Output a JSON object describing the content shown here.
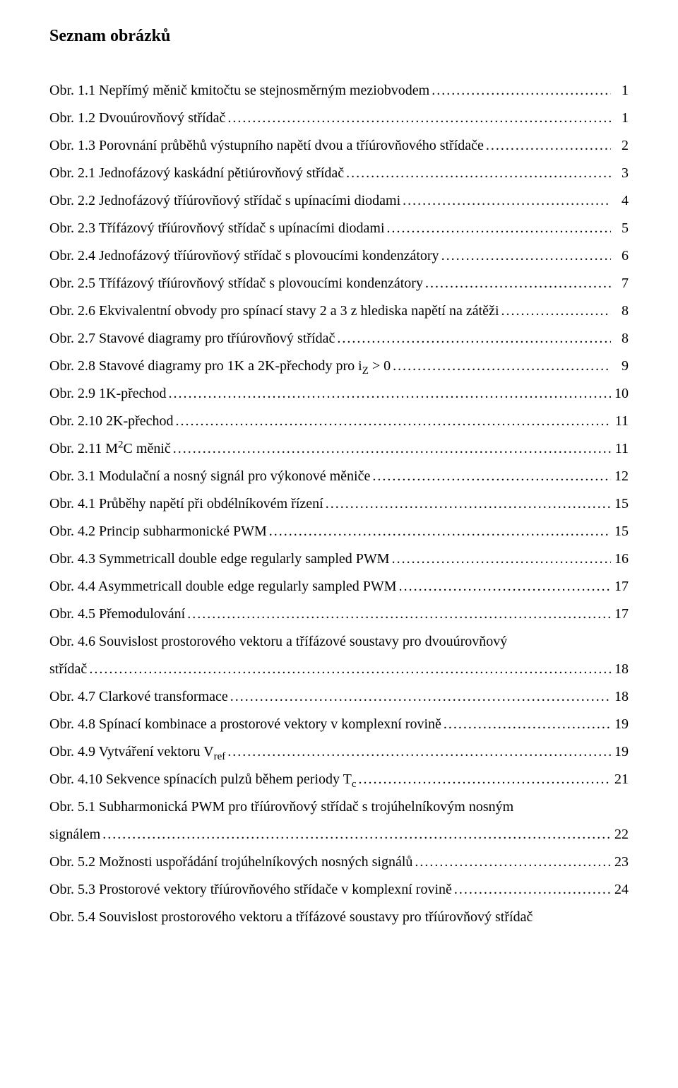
{
  "heading": "Seznam obrázků",
  "entries": [
    {
      "label": "Obr. 1.1 Nepřímý měnič kmitočtu se stejnosměrným meziobvodem",
      "page": "1"
    },
    {
      "label": "Obr. 1.2 Dvouúrovňový střídač",
      "page": "1"
    },
    {
      "label": "Obr. 1.3 Porovnání průběhů výstupního napětí dvou a tříúrovňového střídače",
      "page": "2"
    },
    {
      "label": "Obr. 2.1 Jednofázový kaskádní pětiúrovňový střídač",
      "page": "3"
    },
    {
      "label": "Obr. 2.2 Jednofázový tříúrovňový střídač s upínacími diodami",
      "page": "4"
    },
    {
      "label": "Obr. 2.3 Třífázový tříúrovňový střídač s upínacími diodami",
      "page": "5"
    },
    {
      "label": "Obr. 2.4 Jednofázový tříúrovňový střídač s plovoucími kondenzátory",
      "page": "6"
    },
    {
      "label": "Obr. 2.5 Třífázový tříúrovňový střídač s plovoucími kondenzátory",
      "page": "7"
    },
    {
      "label": "Obr. 2.6 Ekvivalentní obvody pro spínací stavy 2 a 3 z hlediska napětí na zátěži",
      "page": "8"
    },
    {
      "label": "Obr. 2.7 Stavové diagramy pro tříúrovňový střídač",
      "page": "8"
    },
    {
      "label_html": "Obr. 2.8 Stavové diagramy pro 1K a 2K-přechody pro i<span class=\"sub\">Z</span> &gt; 0",
      "page": "9"
    },
    {
      "label": "Obr. 2.9 1K-přechod",
      "page": "10"
    },
    {
      "label": "Obr. 2.10 2K-přechod",
      "page": "11"
    },
    {
      "label_html": "Obr. 2.11 M<span class=\"sup\">2</span>C měnič",
      "page": "11"
    },
    {
      "label": "Obr. 3.1 Modulační a nosný signál pro výkonové měniče",
      "page": "12"
    },
    {
      "label": "Obr. 4.1 Průběhy napětí při obdélníkovém řízení",
      "page": "15"
    },
    {
      "label": "Obr. 4.2 Princip subharmonické PWM",
      "page": "15"
    },
    {
      "label": "Obr. 4.3 Symmetricall double edge regularly sampled PWM",
      "page": "16"
    },
    {
      "label": "Obr. 4.4 Asymmetricall double edge regularly sampled PWM",
      "page": "17"
    },
    {
      "label": "Obr. 4.5 Přemodulování",
      "page": "17"
    },
    {
      "label": "Obr. 4.6 Souvislost prostorového vektoru a třífázové soustavy pro dvouúrovňový",
      "continuation": "střídač",
      "page": "18"
    },
    {
      "label": "Obr. 4.7 Clarkové transformace",
      "page": "18"
    },
    {
      "label": "Obr. 4.8 Spínací kombinace a prostorové vektory v komplexní rovině",
      "page": "19"
    },
    {
      "label_html": "Obr. 4.9 Vytváření vektoru V<span class=\"sub\">ref</span>",
      "page": "19"
    },
    {
      "label_html": "Obr. 4.10 Sekvence spínacích pulzů během periody T<span class=\"sub\">c</span>",
      "page": "21"
    },
    {
      "label": "Obr. 5.1 Subharmonická PWM pro tříúrovňový střídač s trojúhelníkovým nosným",
      "continuation": "signálem",
      "page": "22"
    },
    {
      "label": "Obr. 5.2 Možnosti uspořádání trojúhelníkových nosných signálů",
      "page": "23"
    },
    {
      "label": "Obr. 5.3 Prostorové vektory tříúrovňového střídače v komplexní rovině",
      "page": "24"
    },
    {
      "label": "Obr. 5.4 Souvislost prostorového vektoru a třífázové soustavy pro tříúrovňový střídač",
      "no_page": true
    }
  ]
}
